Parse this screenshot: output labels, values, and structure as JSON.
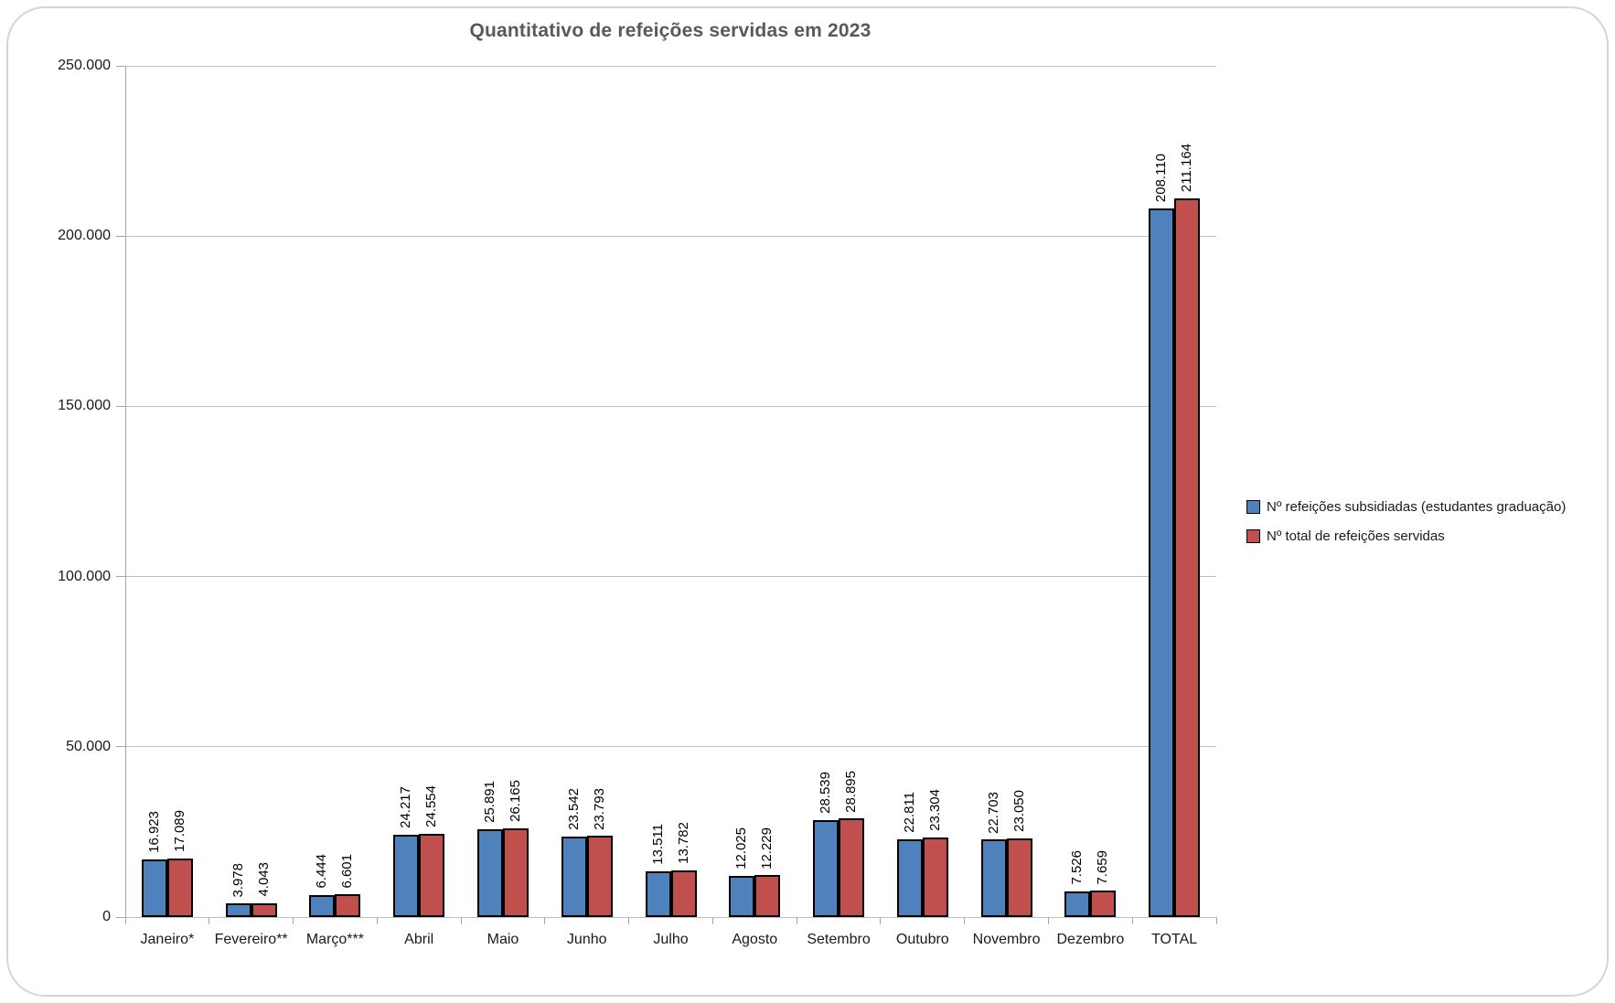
{
  "chart_data": {
    "type": "bar",
    "title": "Quantitativo de refeições servidas em 2023",
    "categories": [
      "Janeiro*",
      "Fevereiro**",
      "Março***",
      "Abril",
      "Maio",
      "Junho",
      "Julho",
      "Agosto",
      "Setembro",
      "Outubro",
      "Novembro",
      "Dezembro",
      "TOTAL"
    ],
    "series": [
      {
        "name": "Nº refeições subsidiadas (estudantes graduação)",
        "color": "#4F81BD",
        "values": [
          16923,
          3978,
          6444,
          24217,
          25891,
          23542,
          13511,
          12025,
          28539,
          22811,
          22703,
          7526,
          208110
        ]
      },
      {
        "name": "Nº total de refeições servidas",
        "color": "#C0504D",
        "values": [
          17089,
          4043,
          6601,
          24554,
          26165,
          23793,
          13782,
          12229,
          28895,
          23304,
          23050,
          7659,
          211164
        ]
      }
    ],
    "data_labels": true,
    "data_label_rotation": 90,
    "ylim": [
      0,
      250000
    ],
    "yticks": [
      0,
      50000,
      100000,
      150000,
      200000,
      250000
    ],
    "ytick_labels": [
      "0",
      "50.000",
      "100.000",
      "150.000",
      "200.000",
      "250.000"
    ],
    "grid": true,
    "legend_position": "right",
    "bar_border_color": "#000000",
    "title_color": "#595959"
  }
}
